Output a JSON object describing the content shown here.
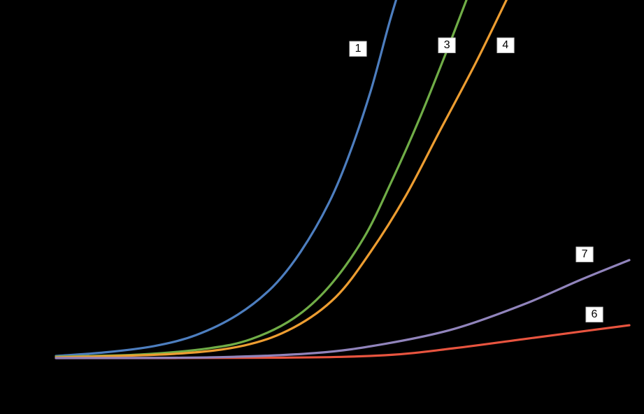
{
  "background_color": "#000000",
  "chart_data": {
    "type": "line",
    "title": "",
    "xlabel": "",
    "ylabel": "",
    "x_range": [
      0,
      1
    ],
    "y_range": [
      0,
      1
    ],
    "grid": false,
    "legend": "inline-labels",
    "series": [
      {
        "name": "1",
        "color": "#4d7ebf",
        "label_pos": [
          0.527,
          0.877
        ],
        "points": [
          [
            0.0,
            0.006
          ],
          [
            0.085,
            0.016
          ],
          [
            0.171,
            0.034
          ],
          [
            0.244,
            0.065
          ],
          [
            0.317,
            0.123
          ],
          [
            0.378,
            0.202
          ],
          [
            0.427,
            0.302
          ],
          [
            0.476,
            0.44
          ],
          [
            0.512,
            0.579
          ],
          [
            0.549,
            0.758
          ],
          [
            0.579,
            0.937
          ],
          [
            0.594,
            1.02
          ]
        ]
      },
      {
        "name": "3",
        "color": "#70ad47",
        "label_pos": [
          0.682,
          0.887
        ],
        "points": [
          [
            0.0,
            0.004
          ],
          [
            0.146,
            0.01
          ],
          [
            0.268,
            0.028
          ],
          [
            0.341,
            0.054
          ],
          [
            0.415,
            0.113
          ],
          [
            0.476,
            0.202
          ],
          [
            0.537,
            0.341
          ],
          [
            0.585,
            0.5
          ],
          [
            0.634,
            0.679
          ],
          [
            0.683,
            0.877
          ],
          [
            0.717,
            1.02
          ]
        ]
      },
      {
        "name": "4",
        "color": "#ed9d31",
        "label_pos": [
          0.784,
          0.887
        ],
        "points": [
          [
            0.0,
            0.002
          ],
          [
            0.207,
            0.012
          ],
          [
            0.329,
            0.036
          ],
          [
            0.415,
            0.087
          ],
          [
            0.488,
            0.173
          ],
          [
            0.549,
            0.302
          ],
          [
            0.61,
            0.46
          ],
          [
            0.671,
            0.649
          ],
          [
            0.732,
            0.837
          ],
          [
            0.787,
            1.02
          ]
        ]
      },
      {
        "name": "6",
        "color": "#e8543f",
        "label_pos": [
          0.939,
          0.123
        ],
        "points": [
          [
            0.0,
            0.0
          ],
          [
            0.39,
            0.001
          ],
          [
            0.573,
            0.008
          ],
          [
            0.695,
            0.028
          ],
          [
            0.817,
            0.054
          ],
          [
            0.915,
            0.075
          ],
          [
            1.0,
            0.093
          ]
        ]
      },
      {
        "name": "7",
        "color": "#9184bc",
        "label_pos": [
          0.922,
          0.294
        ],
        "points": [
          [
            0.0,
            0.0
          ],
          [
            0.268,
            0.002
          ],
          [
            0.451,
            0.014
          ],
          [
            0.573,
            0.04
          ],
          [
            0.695,
            0.083
          ],
          [
            0.817,
            0.153
          ],
          [
            0.915,
            0.222
          ],
          [
            1.0,
            0.278
          ]
        ]
      }
    ]
  }
}
